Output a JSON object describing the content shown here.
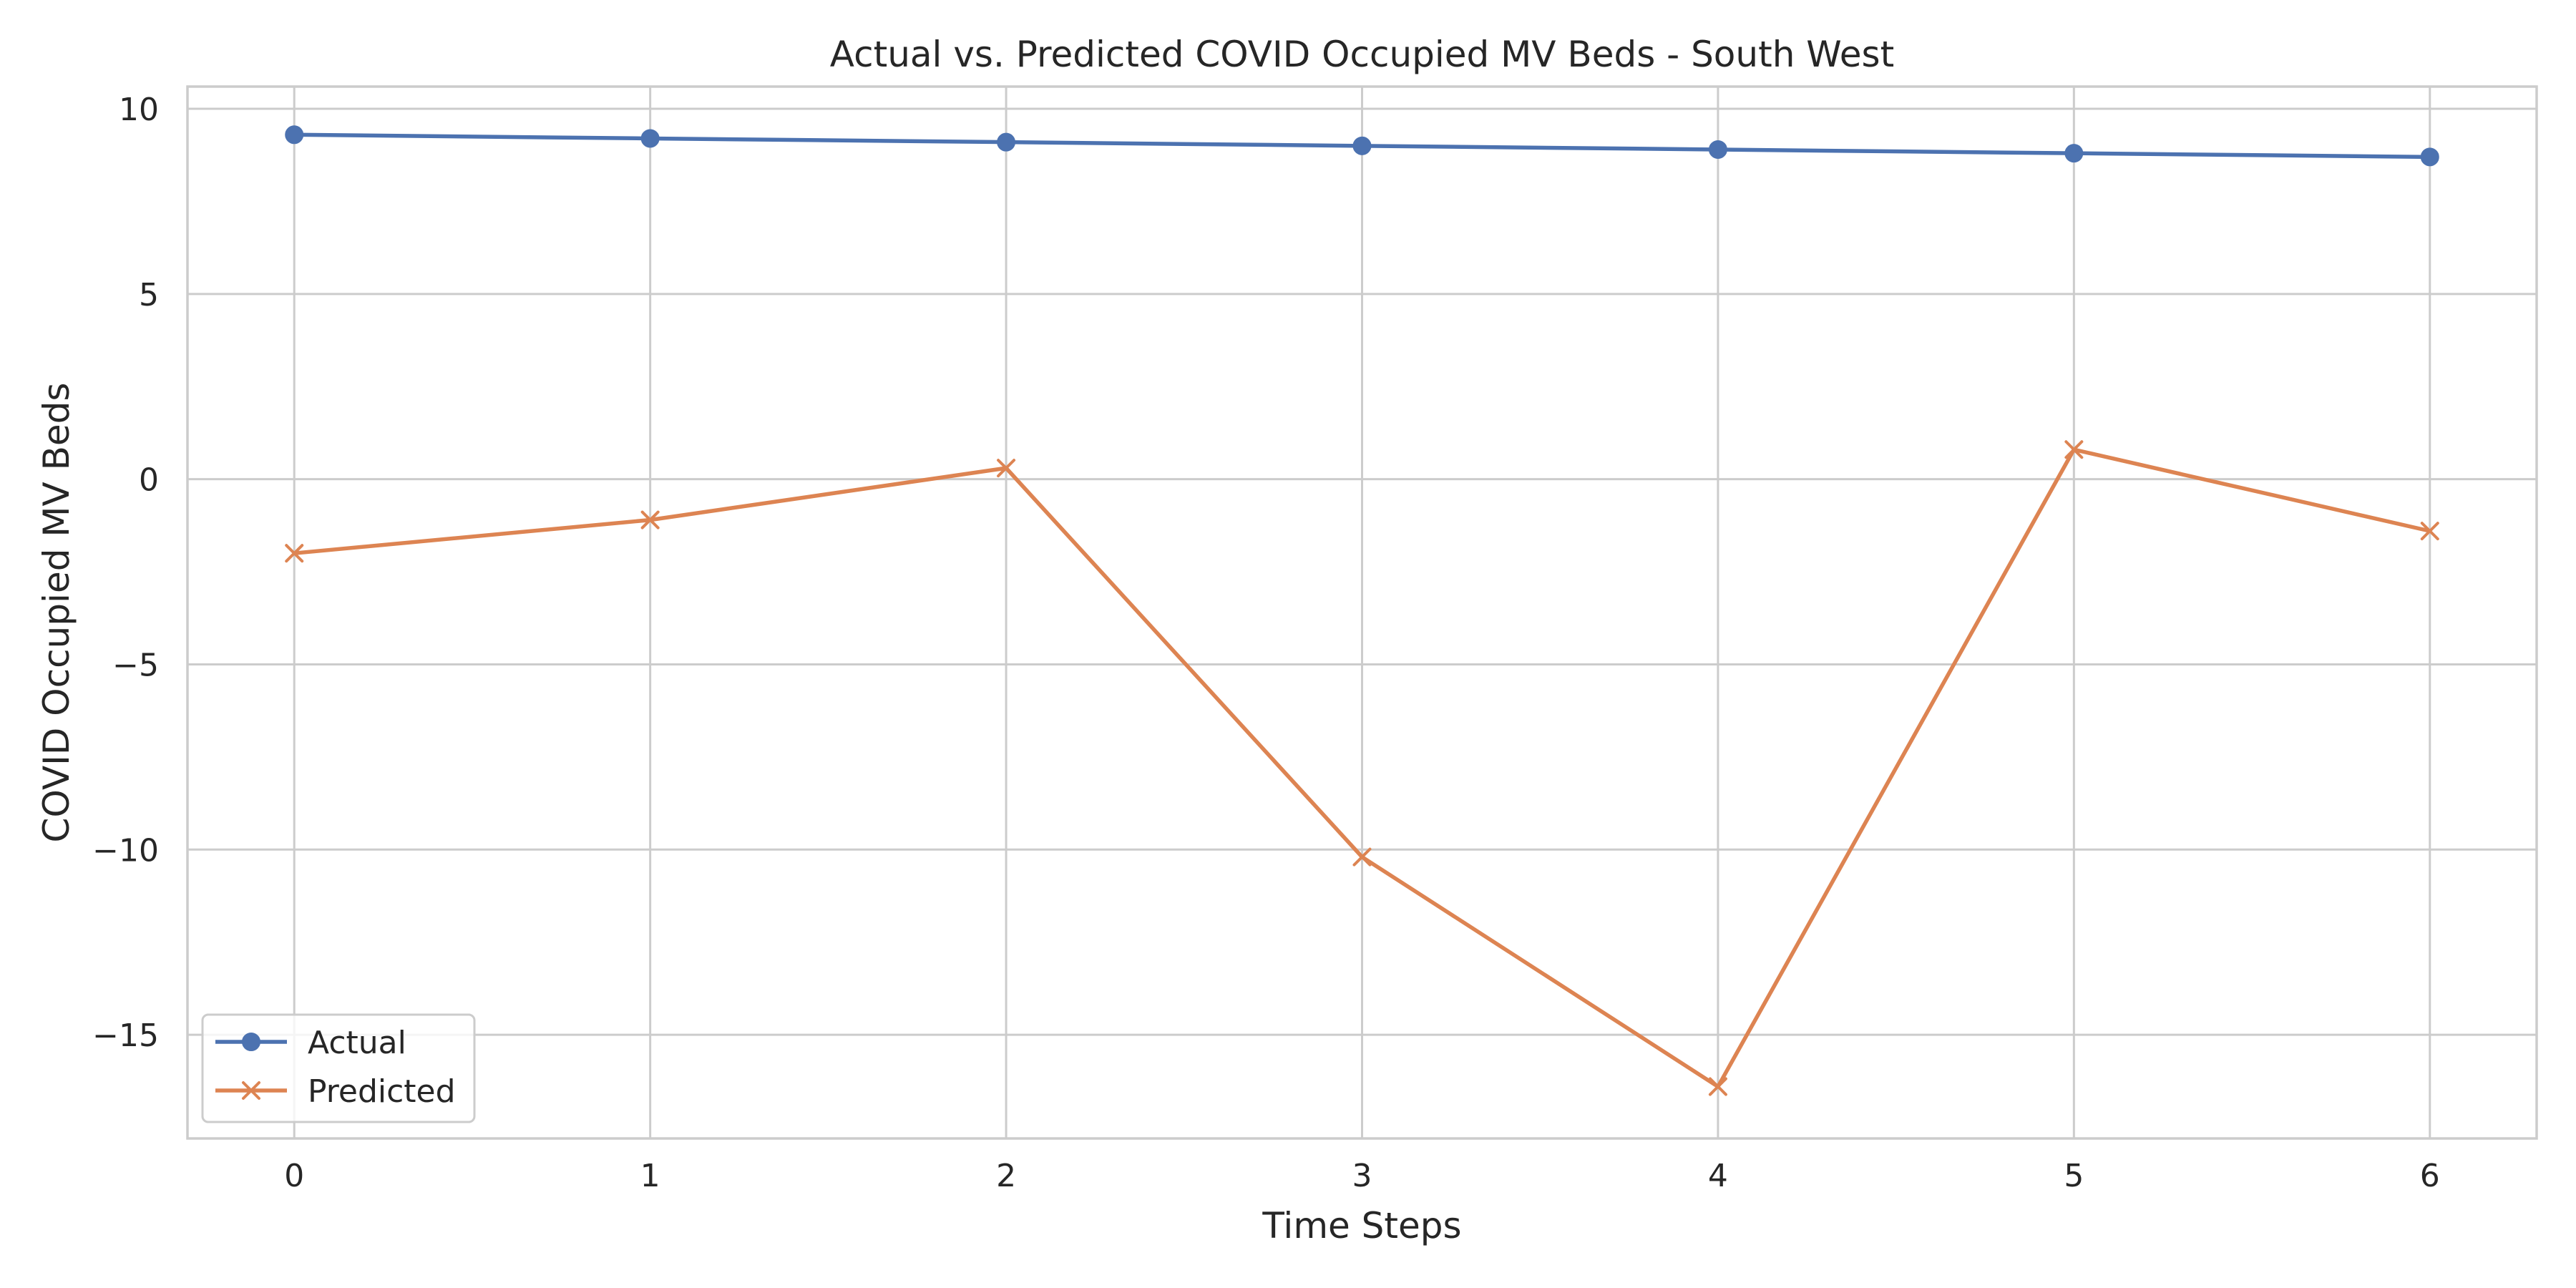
{
  "chart_data": {
    "type": "line",
    "title": "Actual vs. Predicted COVID Occupied MV Beds - South West",
    "xlabel": "Time Steps",
    "ylabel": "COVID Occupied MV Beds",
    "x": [
      0,
      1,
      2,
      3,
      4,
      5,
      6
    ],
    "xticks": [
      "0",
      "1",
      "2",
      "3",
      "4",
      "5",
      "6"
    ],
    "yticks": [
      10,
      5,
      0,
      -5,
      -10,
      -15
    ],
    "ytick_labels": [
      "10",
      "5",
      "0",
      "−5",
      "−10",
      "−15"
    ],
    "xlim": [
      -0.3,
      6.3
    ],
    "ylim": [
      -17.8,
      10.6
    ],
    "grid": true,
    "legend_position": "lower-left",
    "series": [
      {
        "name": "Actual",
        "marker": "circle",
        "color": "#4c72b0",
        "values": [
          9.3,
          9.2,
          9.1,
          9.0,
          8.9,
          8.8,
          8.7
        ]
      },
      {
        "name": "Predicted",
        "marker": "x",
        "color": "#dd8452",
        "values": [
          -2.0,
          -1.1,
          0.3,
          -10.2,
          -16.4,
          0.8,
          -1.4
        ]
      }
    ]
  }
}
